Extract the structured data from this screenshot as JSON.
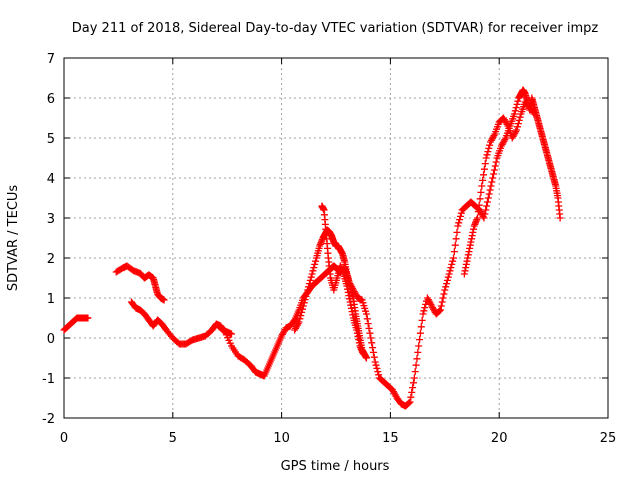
{
  "chart_data": {
    "type": "scatter",
    "title": "Day 211 of 2018, Sidereal Day-to-day VTEC variation (SDTVAR) for receiver impz",
    "xlabel": "GPS time / hours",
    "ylabel": "SDTVAR / TECUs",
    "xlim": [
      0,
      25
    ],
    "ylim": [
      -2,
      7
    ],
    "xticks": [
      0,
      5,
      10,
      15,
      20,
      25
    ],
    "yticks": [
      -2,
      -1,
      0,
      1,
      2,
      3,
      4,
      5,
      6,
      7
    ],
    "grid": true,
    "marker": "+",
    "color": "#ff0000",
    "series": [
      {
        "name": "arc1",
        "x": [
          0.0,
          0.2,
          0.4,
          0.6,
          0.8,
          1.0,
          1.1
        ],
        "y": [
          0.2,
          0.3,
          0.4,
          0.5,
          0.5,
          0.5,
          0.5
        ]
      },
      {
        "name": "arc2",
        "x": [
          2.4,
          2.7,
          2.9,
          3.2,
          3.5,
          3.7,
          3.9,
          4.1,
          4.2,
          4.3,
          4.45,
          4.6
        ],
        "y": [
          1.65,
          1.75,
          1.8,
          1.68,
          1.62,
          1.5,
          1.58,
          1.5,
          1.3,
          1.1,
          1.0,
          0.95
        ]
      },
      {
        "name": "arc3",
        "x": [
          3.1,
          3.3,
          3.5,
          3.7,
          3.9,
          4.1,
          4.3,
          4.5,
          4.7,
          5.0,
          5.3,
          5.6,
          5.9,
          6.2,
          6.5,
          6.8,
          7.0,
          7.2,
          7.4,
          7.7,
          8.0,
          8.3,
          8.6,
          8.8,
          9.0,
          9.2,
          9.4,
          9.6,
          9.8,
          10.0,
          10.2,
          10.4,
          10.6,
          10.8,
          11.0,
          11.2,
          11.4,
          11.6,
          11.8,
          12.0,
          12.1,
          12.2,
          12.3,
          12.4,
          12.5,
          12.6,
          12.7,
          12.8,
          12.9,
          13.0,
          13.1,
          13.2,
          13.3,
          13.4,
          13.5,
          13.6,
          13.7,
          13.8,
          13.9
        ],
        "y": [
          0.9,
          0.75,
          0.7,
          0.6,
          0.45,
          0.3,
          0.45,
          0.35,
          0.2,
          0.0,
          -0.15,
          -0.15,
          -0.05,
          0.0,
          0.05,
          0.2,
          0.35,
          0.3,
          0.15,
          -0.2,
          -0.45,
          -0.55,
          -0.7,
          -0.85,
          -0.9,
          -0.95,
          -0.7,
          -0.45,
          -0.2,
          0.05,
          0.25,
          0.3,
          0.45,
          0.7,
          1.0,
          1.15,
          1.3,
          1.4,
          1.5,
          1.6,
          1.65,
          1.7,
          1.75,
          1.8,
          1.75,
          1.7,
          1.65,
          1.7,
          1.75,
          1.6,
          1.4,
          1.2,
          1.0,
          0.6,
          0.3,
          0.0,
          -0.3,
          -0.4,
          -0.5
        ]
      },
      {
        "name": "arc4",
        "x": [
          10.6,
          10.8,
          11.0,
          11.2,
          11.4,
          11.6,
          11.75,
          11.9,
          12.0,
          12.1,
          12.2,
          12.3,
          12.4,
          12.5,
          12.6,
          12.7,
          12.8,
          12.9,
          13.0,
          13.1,
          13.3,
          13.5,
          13.7,
          13.9,
          14.1,
          14.3,
          14.5,
          14.7,
          14.9,
          15.1,
          15.3,
          15.5,
          15.7,
          15.9,
          16.1,
          16.3,
          16.5,
          16.7,
          16.9,
          17.1,
          17.3,
          17.5,
          17.7,
          17.9,
          18.1,
          18.3,
          18.5,
          18.7,
          18.9,
          19.1,
          19.3,
          19.5,
          19.7,
          19.9,
          20.1,
          20.3,
          20.5,
          20.7,
          20.9,
          21.0,
          21.1,
          21.2,
          21.3,
          21.4,
          21.5,
          21.6,
          21.7,
          21.8,
          21.9,
          22.0,
          22.1,
          22.2,
          22.3,
          22.4,
          22.5,
          22.6,
          22.7,
          22.8
        ],
        "y": [
          0.2,
          0.4,
          0.8,
          1.2,
          1.6,
          2.0,
          2.3,
          2.5,
          2.6,
          2.7,
          2.65,
          2.55,
          2.4,
          2.3,
          2.3,
          2.2,
          2.1,
          1.9,
          1.6,
          1.4,
          1.2,
          1.0,
          0.95,
          0.6,
          0.0,
          -0.6,
          -1.0,
          -1.1,
          -1.2,
          -1.3,
          -1.5,
          -1.65,
          -1.7,
          -1.6,
          -1.0,
          -0.2,
          0.6,
          1.0,
          0.8,
          0.6,
          0.7,
          1.2,
          1.6,
          2.0,
          2.8,
          3.2,
          3.3,
          3.4,
          3.3,
          3.2,
          3.0,
          3.5,
          4.0,
          4.5,
          4.8,
          5.0,
          5.3,
          5.6,
          6.0,
          6.1,
          6.2,
          6.1,
          5.9,
          5.7,
          6.0,
          5.8,
          5.6,
          5.4,
          5.2,
          5.0,
          4.8,
          4.6,
          4.4,
          4.2,
          4.0,
          3.8,
          3.5,
          3.0
        ]
      },
      {
        "name": "arc5",
        "x": [
          18.4,
          18.55,
          18.7,
          18.85,
          19.0,
          19.2,
          19.4,
          19.6,
          19.8,
          20.0,
          20.2,
          20.4,
          20.6,
          20.8,
          21.0,
          21.2,
          21.4,
          21.6
        ],
        "y": [
          1.6,
          2.0,
          2.4,
          2.8,
          3.0,
          3.8,
          4.5,
          4.9,
          5.1,
          5.4,
          5.5,
          5.3,
          5.0,
          5.2,
          5.6,
          5.9,
          5.8,
          5.6
        ]
      },
      {
        "name": "spike",
        "x": [
          11.85,
          11.95,
          12.05,
          12.15,
          12.25,
          12.4,
          12.55,
          12.7,
          12.85,
          13.0,
          13.15,
          13.3,
          13.45,
          13.6,
          13.75
        ],
        "y": [
          3.3,
          3.2,
          2.6,
          2.0,
          1.5,
          1.2,
          1.5,
          1.8,
          1.6,
          1.3,
          0.9,
          0.5,
          0.2,
          -0.2,
          -0.4
        ]
      },
      {
        "name": "arc6",
        "x": [
          7.1,
          7.3,
          7.5,
          7.7
        ],
        "y": [
          0.3,
          0.2,
          0.15,
          0.1
        ]
      }
    ]
  }
}
